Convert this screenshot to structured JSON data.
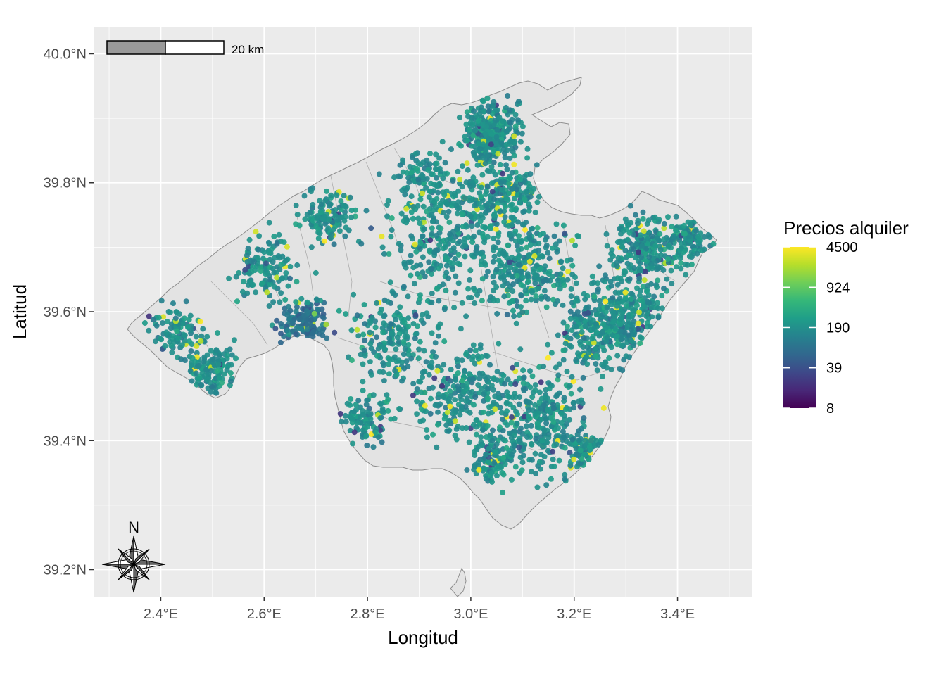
{
  "axes": {
    "xlabel": "Longitud",
    "ylabel": "Latitud",
    "xticks": [
      {
        "value": 2.4,
        "label": "2.4°E"
      },
      {
        "value": 2.6,
        "label": "2.6°E"
      },
      {
        "value": 2.8,
        "label": "2.8°E"
      },
      {
        "value": 3.0,
        "label": "3.0°E"
      },
      {
        "value": 3.2,
        "label": "3.2°E"
      },
      {
        "value": 3.4,
        "label": "3.4°E"
      }
    ],
    "yticks": [
      {
        "value": 39.2,
        "label": "39.2°N"
      },
      {
        "value": 39.4,
        "label": "39.4°N"
      },
      {
        "value": 39.6,
        "label": "39.6°N"
      },
      {
        "value": 39.8,
        "label": "39.8°N"
      },
      {
        "value": 40.0,
        "label": "40.0°N"
      }
    ],
    "xlim": [
      2.27,
      3.545
    ],
    "ylim": [
      39.158,
      40.042
    ],
    "grid": true
  },
  "legend": {
    "title": "Precios alquiler",
    "ticks": [
      "4500",
      "924",
      "190",
      "39",
      "8"
    ],
    "colors": [
      "#440154",
      "#3b528b",
      "#21918c",
      "#5ec962",
      "#fde725"
    ],
    "placement": "right"
  },
  "scalebar": {
    "label": "20 km"
  },
  "north_arrow": {
    "label": "N"
  },
  "colors": {
    "panel": "#ebebeb",
    "land": "#e3e3e3",
    "border": "#8c8c8c",
    "grid": "#ffffff"
  },
  "chart_data": {
    "type": "scatter",
    "color_scale": "viridis (log)",
    "value_range": [
      8,
      4500
    ]
  }
}
